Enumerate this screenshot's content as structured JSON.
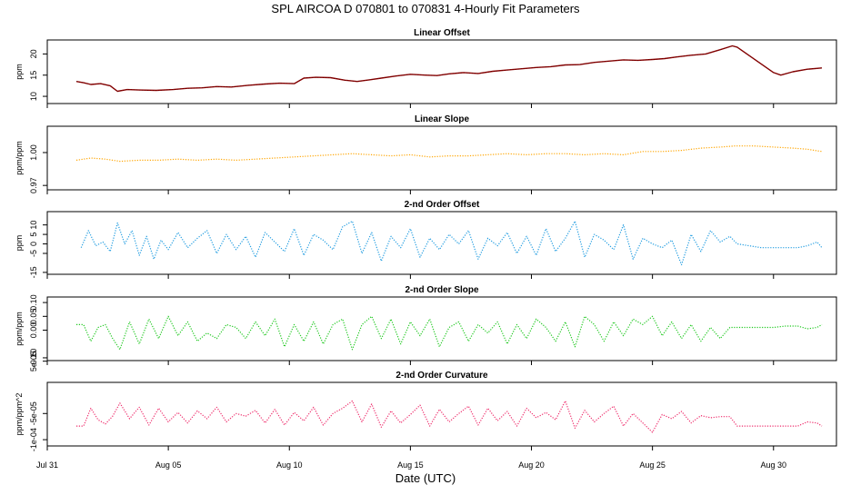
{
  "title": "SPL   AIRCOA D   070801 to 070831   4-Hourly Fit Parameters",
  "xlabel": "Date (UTC)",
  "x_ticks": [
    "Jul 31",
    "Aug 05",
    "Aug 10",
    "Aug 15",
    "Aug 20",
    "Aug 25",
    "Aug 30"
  ],
  "x_tick_days": [
    0,
    5,
    10,
    15,
    20,
    25,
    30
  ],
  "chart_data": [
    {
      "type": "line",
      "title": "Linear Offset",
      "ylabel": "ppm",
      "color": "#8b0000",
      "style": "solid",
      "yticks": [
        10,
        15,
        20
      ],
      "ytick_labels": [
        "10",
        "15",
        "20"
      ],
      "ylim": [
        8.3,
        23.3
      ],
      "x_days": [
        1.2,
        1.5,
        1.8,
        2.2,
        2.6,
        2.9,
        3.3,
        3.8,
        4.5,
        5.2,
        5.8,
        6.4,
        7.0,
        7.6,
        8.3,
        9.0,
        9.6,
        10.2,
        10.6,
        11.1,
        11.7,
        12.3,
        12.8,
        13.3,
        13.8,
        14.4,
        15.0,
        15.6,
        16.1,
        16.6,
        17.2,
        17.8,
        18.4,
        19.0,
        19.6,
        20.2,
        20.8,
        21.4,
        22.0,
        22.6,
        23.2,
        23.8,
        24.4,
        25.0,
        25.5,
        26.0,
        26.6,
        27.2,
        27.8,
        28.3,
        28.5,
        30.0,
        30.3,
        30.8,
        31.4,
        32.0
      ],
      "y": [
        13.5,
        13.2,
        12.8,
        13.0,
        12.5,
        11.2,
        11.6,
        11.5,
        11.4,
        11.6,
        11.9,
        12.0,
        12.3,
        12.2,
        12.6,
        12.9,
        13.1,
        13.0,
        14.3,
        14.5,
        14.4,
        13.8,
        13.5,
        13.9,
        14.3,
        14.8,
        15.2,
        15.0,
        14.9,
        15.3,
        15.6,
        15.4,
        15.9,
        16.2,
        16.5,
        16.8,
        17.0,
        17.4,
        17.5,
        18.0,
        18.3,
        18.6,
        18.5,
        18.7,
        18.9,
        19.3,
        19.7,
        20.0,
        21.0,
        21.9,
        21.6,
        15.6,
        15.0,
        15.8,
        16.4,
        16.7
      ]
    },
    {
      "type": "line",
      "title": "Linear Slope",
      "ylabel": "ppm/ppm",
      "color": "#ffa500",
      "style": "dotted",
      "yticks": [
        0.97,
        1.0
      ],
      "ytick_labels": [
        "0.97",
        "1.00"
      ],
      "ylim": [
        0.966,
        1.024
      ],
      "x_days": [
        1.2,
        1.8,
        2.4,
        3.0,
        3.8,
        4.6,
        5.4,
        6.2,
        7.0,
        7.8,
        8.6,
        9.4,
        10.2,
        11.0,
        11.8,
        12.6,
        13.4,
        14.2,
        15.0,
        15.8,
        16.6,
        17.4,
        18.2,
        19.0,
        19.8,
        20.6,
        21.4,
        22.2,
        23.0,
        23.8,
        24.6,
        25.4,
        26.2,
        27.0,
        27.8,
        28.4,
        29.2,
        30.0,
        30.8,
        31.4,
        32.0
      ],
      "y": [
        0.993,
        0.995,
        0.994,
        0.992,
        0.993,
        0.993,
        0.994,
        0.993,
        0.994,
        0.993,
        0.994,
        0.995,
        0.996,
        0.997,
        0.998,
        0.999,
        0.998,
        0.997,
        0.998,
        0.996,
        0.997,
        0.997,
        0.998,
        0.999,
        0.998,
        0.999,
        0.999,
        0.998,
        0.999,
        0.998,
        1.001,
        1.001,
        1.002,
        1.004,
        1.005,
        1.006,
        1.006,
        1.005,
        1.004,
        1.003,
        1.001
      ]
    },
    {
      "type": "line",
      "title": "2-nd Order Offset",
      "ylabel": "ppm",
      "color": "#1e9be0",
      "style": "dotted",
      "yticks": [
        -15,
        -5,
        0,
        5,
        10
      ],
      "ytick_labels": [
        "-15",
        "-5",
        "0",
        "5",
        "10"
      ],
      "ylim": [
        -16,
        17
      ],
      "x_days": [
        1.4,
        1.7,
        2.0,
        2.3,
        2.6,
        2.9,
        3.2,
        3.5,
        3.8,
        4.1,
        4.4,
        4.7,
        5.0,
        5.4,
        5.8,
        6.2,
        6.6,
        7.0,
        7.4,
        7.8,
        8.2,
        8.6,
        9.0,
        9.4,
        9.8,
        10.2,
        10.6,
        11.0,
        11.4,
        11.8,
        12.2,
        12.6,
        13.0,
        13.4,
        13.8,
        14.2,
        14.6,
        15.0,
        15.4,
        15.8,
        16.2,
        16.6,
        17.0,
        17.4,
        17.8,
        18.2,
        18.6,
        19.0,
        19.4,
        19.8,
        20.2,
        20.6,
        21.0,
        21.4,
        21.8,
        22.2,
        22.6,
        23.0,
        23.4,
        23.8,
        24.2,
        24.6,
        25.0,
        25.4,
        25.8,
        26.2,
        26.6,
        27.0,
        27.4,
        27.8,
        28.2,
        28.5,
        29.0,
        29.5,
        30.0,
        30.5,
        31.0,
        31.4,
        31.8,
        32.0
      ],
      "y": [
        -2,
        7,
        -1,
        1,
        -4,
        11,
        0,
        7,
        -6,
        4,
        -8,
        2,
        -3,
        6,
        -2,
        3,
        7,
        -5,
        5,
        -3,
        4,
        -7,
        6,
        1,
        -4,
        8,
        -6,
        5,
        2,
        -3,
        9,
        12,
        -5,
        6,
        -9,
        4,
        -2,
        8,
        -7,
        3,
        -3,
        5,
        0,
        7,
        -8,
        3,
        -1,
        6,
        -5,
        4,
        -6,
        8,
        -4,
        3,
        12,
        -7,
        5,
        2,
        -3,
        10,
        -8,
        3,
        0,
        -2,
        2,
        -11,
        5,
        -4,
        7,
        1,
        4,
        0,
        -1,
        -2,
        -2,
        -2,
        -2,
        -1,
        1,
        -2
      ]
    },
    {
      "type": "line",
      "title": "2-nd Order Slope",
      "ylabel": "ppm/ppm",
      "color": "#1ec81e",
      "style": "dotted",
      "yticks": [
        -0.1,
        0.0,
        0.05,
        0.1
      ],
      "ytick_labels": [
        "-0.10",
        "0.00",
        "0.05",
        "0.10"
      ],
      "ylim": [
        -0.11,
        0.12
      ],
      "x_days": [
        1.2,
        1.5,
        1.8,
        2.1,
        2.4,
        2.7,
        3.0,
        3.4,
        3.8,
        4.2,
        4.6,
        5.0,
        5.4,
        5.8,
        6.2,
        6.6,
        7.0,
        7.4,
        7.8,
        8.2,
        8.6,
        9.0,
        9.4,
        9.8,
        10.2,
        10.6,
        11.0,
        11.4,
        11.8,
        12.2,
        12.6,
        13.0,
        13.4,
        13.8,
        14.2,
        14.6,
        15.0,
        15.4,
        15.8,
        16.2,
        16.6,
        17.0,
        17.4,
        17.8,
        18.2,
        18.6,
        19.0,
        19.4,
        19.8,
        20.2,
        20.6,
        21.0,
        21.4,
        21.8,
        22.2,
        22.6,
        23.0,
        23.4,
        23.8,
        24.2,
        24.6,
        25.0,
        25.4,
        25.8,
        26.2,
        26.6,
        27.0,
        27.4,
        27.8,
        28.2,
        28.5,
        29.0,
        29.5,
        30.0,
        30.5,
        31.0,
        31.4,
        31.8,
        32.0
      ],
      "y": [
        0.02,
        0.02,
        -0.04,
        0.01,
        0.02,
        -0.03,
        -0.07,
        0.03,
        -0.05,
        0.04,
        -0.03,
        0.05,
        -0.02,
        0.03,
        -0.04,
        -0.01,
        -0.03,
        0.02,
        0.01,
        -0.03,
        0.03,
        -0.02,
        0.04,
        -0.06,
        0.02,
        -0.04,
        0.03,
        -0.05,
        0.02,
        0.04,
        -0.07,
        0.02,
        0.05,
        -0.03,
        0.04,
        -0.05,
        0.03,
        -0.02,
        0.04,
        -0.06,
        0.01,
        0.03,
        -0.04,
        0.02,
        -0.01,
        0.03,
        -0.05,
        0.02,
        -0.03,
        0.04,
        0.01,
        -0.04,
        0.03,
        -0.06,
        0.05,
        0.02,
        -0.04,
        0.03,
        -0.02,
        0.04,
        0.02,
        0.05,
        -0.02,
        0.03,
        -0.03,
        0.02,
        -0.04,
        0.01,
        -0.03,
        0.01,
        0.01,
        0.01,
        0.01,
        0.01,
        0.015,
        0.015,
        0.005,
        0.01,
        0.02
      ]
    },
    {
      "type": "line",
      "title": "2-nd Order Curvature",
      "ylabel": "ppm/ppm^2",
      "color": "#ee2a6a",
      "style": "dotted",
      "yticks": [
        -0.0001,
        -5e-05,
        5e-05
      ],
      "ytick_labels": [
        "-1e-04",
        "-5e-05",
        "5e-05"
      ],
      "ylim": [
        -0.000112,
        9.5e-06
      ],
      "x_days": [
        1.2,
        1.5,
        1.8,
        2.1,
        2.4,
        2.7,
        3.0,
        3.4,
        3.8,
        4.2,
        4.6,
        5.0,
        5.4,
        5.8,
        6.2,
        6.6,
        7.0,
        7.4,
        7.8,
        8.2,
        8.6,
        9.0,
        9.4,
        9.8,
        10.2,
        10.6,
        11.0,
        11.4,
        11.8,
        12.2,
        12.6,
        13.0,
        13.4,
        13.8,
        14.2,
        14.6,
        15.0,
        15.4,
        15.8,
        16.2,
        16.6,
        17.0,
        17.4,
        17.8,
        18.2,
        18.6,
        19.0,
        19.4,
        19.8,
        20.2,
        20.6,
        21.0,
        21.4,
        21.8,
        22.2,
        22.6,
        23.0,
        23.4,
        23.8,
        24.2,
        24.6,
        25.0,
        25.4,
        25.8,
        26.2,
        26.6,
        27.0,
        27.4,
        27.8,
        28.2,
        28.5,
        29.0,
        29.5,
        30.0,
        30.5,
        31.0,
        31.4,
        31.8,
        32.0
      ],
      "y": [
        -7.4e-05,
        -7.4e-05,
        -4e-05,
        -6.2e-05,
        -7e-05,
        -5.5e-05,
        -3e-05,
        -6e-05,
        -3.8e-05,
        -7.2e-05,
        -4e-05,
        -6.6e-05,
        -4.8e-05,
        -6.8e-05,
        -4.5e-05,
        -6e-05,
        -3.8e-05,
        -6.6e-05,
        -5e-05,
        -5.5e-05,
        -4.4e-05,
        -6.8e-05,
        -4.2e-05,
        -7.2e-05,
        -4.8e-05,
        -6.4e-05,
        -3.8e-05,
        -7.2e-05,
        -5e-05,
        -4e-05,
        -2.6e-05,
        -6.6e-05,
        -3.2e-05,
        -7.6e-05,
        -4.5e-05,
        -6.8e-05,
        -5.2e-05,
        -3.4e-05,
        -7.4e-05,
        -4.2e-05,
        -6.6e-05,
        -5e-05,
        -3.6e-05,
        -7.2e-05,
        -4e-05,
        -6.4e-05,
        -4.6e-05,
        -7.4e-05,
        -4e-05,
        -5.8e-05,
        -4.8e-05,
        -6.2e-05,
        -2.6e-05,
        -7.8e-05,
        -4.4e-05,
        -6.6e-05,
        -5e-05,
        -3.6e-05,
        -7.4e-05,
        -5e-05,
        -6.8e-05,
        -8.6e-05,
        -5.2e-05,
        -6e-05,
        -4.6e-05,
        -6.8e-05,
        -5.4e-05,
        -5.8e-05,
        -5.6e-05,
        -5.6e-05,
        -7.4e-05,
        -7.4e-05,
        -7.4e-05,
        -7.4e-05,
        -7.4e-05,
        -7.4e-05,
        -6.6e-05,
        -6.8e-05,
        -7.4e-05
      ]
    }
  ]
}
